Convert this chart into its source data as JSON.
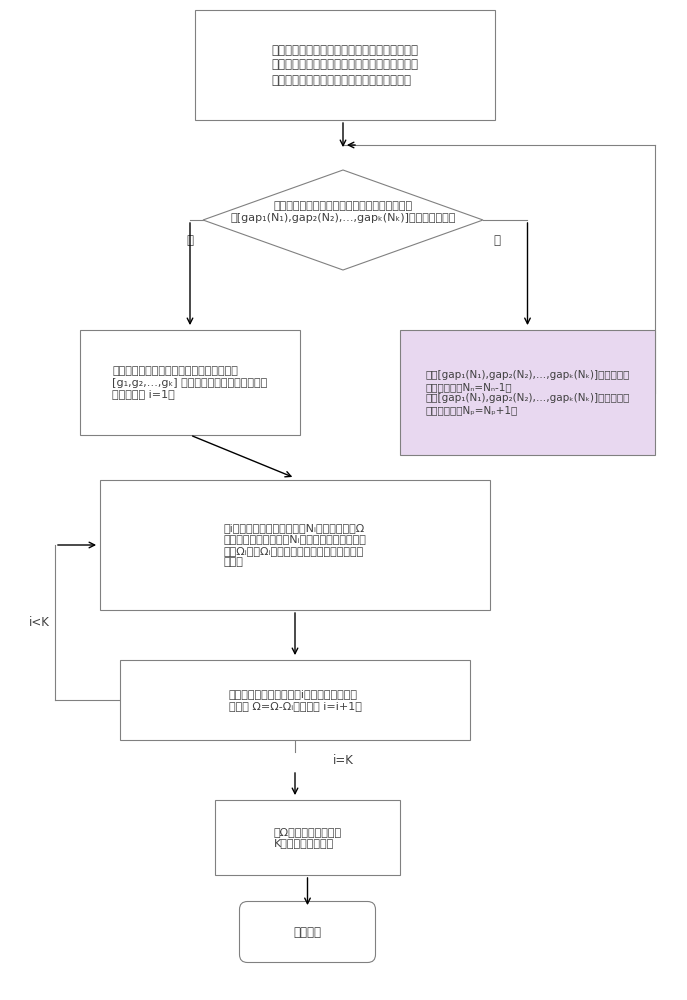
{
  "bg_color": "#ffffff",
  "box_color": "#ffffff",
  "box_edge_color": "#808080",
  "diamond_color": "#ffffff",
  "diamond_edge_color": "#808080",
  "right_box_color": "#e8d8f0",
  "right_box_edge_color": "#808080",
  "arrow_color": "#000000",
  "text_color": "#404040",
  "line_color": "#808080",
  "box1_text": "将基站的总发射功率平均分配至基站所使用的子\n载频集合中的每个子载频上，并将子载频集合中\n的所有子载频平均分配给所有通信中的用户。",
  "diamond_text": "对于所有用户，判断其有效容量与容量下限的差\n值[gap₁(N₁),gap₂(N₂),…,gapₖ(Nₖ)]是否大于等于零",
  "yes_label": "是",
  "no_label": "否",
  "box2_text": "将每个用户按其子载频上的平均增益噪声比\n[g₁,g₂,…,gₖ] 的大小由大到小进行排列，并\n设置计数器 i=1。",
  "box3_text": "对于[gap₁(N₁),gap₂(N₂),…,gapₖ(Nₖ)]中差值最大\n的用户，执行Nₙ=Nₙ-1；\n对于[gap₁(N₁),gap₂(N₂),…,gapₖ(Nₖ)]中差值最小\n的用户，执行Nₚ=Nₚ+1。",
  "box4_text": "第i个用户根据其子载频数目Nᵢ从子载频集合Ω\n中挑选信道质量最好的Nᵢ个子载频作为其子载频\n集合Ωᵢ，由Ωᵢ中的所有子载频组成此用户的子\n信道。",
  "box5_text": "剔除子载频集合中已被第i个用户选中的子载\n频，即 Ω=Ω-Ωᵢ，并设置 i=i+1。",
  "loop_label": "i<K",
  "ik_label": "i=K",
  "box6_text": "将Ω中的子载频组成第\nK个用户的子信道。",
  "end_text": "算法结束",
  "fontsize": 8.5,
  "label_fontsize": 8.5
}
